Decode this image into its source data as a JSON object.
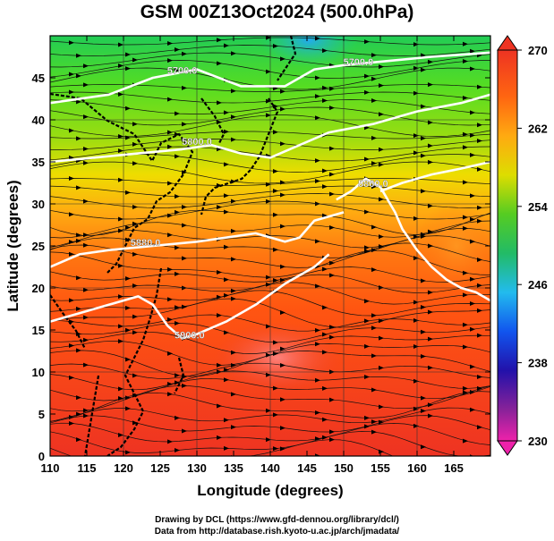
{
  "title": "GSM 00Z13Oct2024 (500.0hPa)",
  "credit_line_1": "Drawing by DCL (https://www.gfd-dennou.org/library/dcl/)",
  "credit_line_2": "Data from http://database.rish.kyoto-u.ac.jp/arch/jmadata/",
  "chart_data": {
    "type": "heatmap",
    "title": "GSM 00Z13Oct2024 (500.0hPa)",
    "xlabel": "Longitude (degrees)",
    "ylabel": "Latitude  (degrees)",
    "xlim": [
      110,
      170
    ],
    "ylim": [
      0,
      50
    ],
    "x_ticks": [
      "110",
      "115",
      "120",
      "125",
      "130",
      "135",
      "140",
      "145",
      "150",
      "155",
      "160",
      "165"
    ],
    "y_ticks": [
      "0",
      "5",
      "10",
      "15",
      "20",
      "25",
      "30",
      "35",
      "40",
      "45"
    ],
    "colorbar": {
      "range": [
        230,
        270
      ],
      "ticks": [
        "270",
        "262",
        "254",
        "246",
        "238",
        "230"
      ],
      "colors": [
        "#cc33aa",
        "#3311aa",
        "#1166ee",
        "#22ccdd",
        "#33cc33",
        "#aadd11",
        "#ffdd00",
        "#ff9911",
        "#ff5511",
        "#ee3322"
      ]
    },
    "contours": [
      {
        "label": "5700.0",
        "lons": [
          110,
          118,
          124,
          130,
          136,
          142,
          146,
          150,
          156,
          162,
          170
        ],
        "lats": [
          42,
          43,
          45,
          46,
          44,
          44,
          46,
          46.5,
          47,
          47.5,
          48
        ]
      },
      {
        "label": "5800.0",
        "lons": [
          110,
          116,
          122,
          128,
          132,
          136,
          140,
          144,
          148,
          154,
          160,
          166,
          170
        ],
        "lats": [
          35,
          35.5,
          36,
          36.5,
          37,
          36,
          35.5,
          37,
          38.5,
          39.5,
          41,
          42,
          43
        ]
      },
      {
        "label": "5860.0",
        "lons": [
          149,
          151,
          153,
          155,
          157,
          158,
          160,
          162,
          164,
          166,
          168,
          170
        ],
        "lats": [
          30.5,
          31.5,
          33,
          32,
          29,
          27,
          24.5,
          22.5,
          21,
          20,
          19.5,
          18.5
        ]
      },
      {
        "label": "5860.0",
        "lons": [
          155,
          158,
          162,
          166,
          170
        ],
        "lats": [
          31.5,
          32.5,
          33.5,
          34.2,
          35
        ]
      },
      {
        "label": "5880.0",
        "lons": [
          110,
          114,
          118,
          124,
          130,
          134,
          138,
          142,
          144,
          146,
          150
        ],
        "lats": [
          22.5,
          24,
          24.5,
          25,
          25.5,
          26,
          26.5,
          25.5,
          26,
          28,
          29
        ]
      },
      {
        "label": "5900.0",
        "lons": [
          110,
          114,
          118,
          122,
          124,
          126,
          128,
          130,
          134,
          138,
          142,
          146,
          148
        ],
        "lats": [
          16,
          17,
          18,
          19,
          18,
          15.5,
          14,
          14.5,
          16,
          18,
          20.5,
          22.5,
          24
        ]
      }
    ],
    "contour_labels": [
      {
        "text": "5700.0",
        "lon": 128,
        "lat": 45.5
      },
      {
        "text": "5700.0",
        "lon": 152,
        "lat": 46.5
      },
      {
        "text": "5800.0",
        "lon": 130,
        "lat": 37
      },
      {
        "text": "5860.0",
        "lon": 154,
        "lat": 32
      },
      {
        "text": "5880.0",
        "lon": 123,
        "lat": 25
      },
      {
        "text": "5900.0",
        "lon": 129,
        "lat": 14
      }
    ]
  }
}
